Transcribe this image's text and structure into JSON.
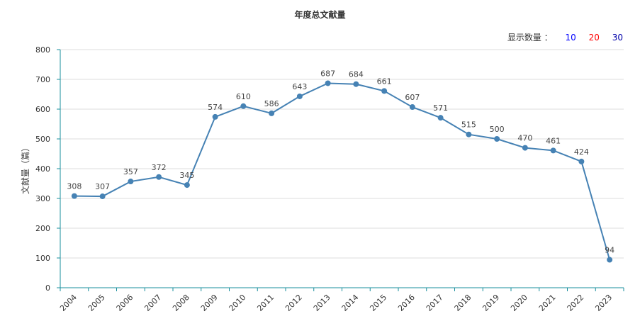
{
  "header": {
    "title": "年度总文献量",
    "show_count_label": "显示数量 ：",
    "show_count_options": [
      {
        "label": "10",
        "color": "#0000ff"
      },
      {
        "label": "20",
        "color": "#ff0000"
      },
      {
        "label": "30",
        "color": "#0000aa"
      }
    ]
  },
  "colors": {
    "line": "#4682b4",
    "axis": "#1a8f9e",
    "grid": "#dddddd"
  },
  "chart_data": {
    "type": "line",
    "title": "年度总文献量",
    "xlabel": "",
    "ylabel": "文献量（篇）",
    "ylim": [
      0,
      800
    ],
    "yticks": [
      0,
      100,
      200,
      300,
      400,
      500,
      600,
      700,
      800
    ],
    "grid": true,
    "categories": [
      "2004",
      "2005",
      "2006",
      "2007",
      "2008",
      "2009",
      "2010",
      "2011",
      "2012",
      "2013",
      "2014",
      "2015",
      "2016",
      "2017",
      "2018",
      "2019",
      "2020",
      "2021",
      "2022",
      "2023"
    ],
    "series": [
      {
        "values": [
          308,
          307,
          357,
          372,
          345,
          574,
          610,
          586,
          643,
          687,
          684,
          661,
          607,
          571,
          515,
          500,
          470,
          461,
          424,
          94
        ]
      }
    ]
  }
}
